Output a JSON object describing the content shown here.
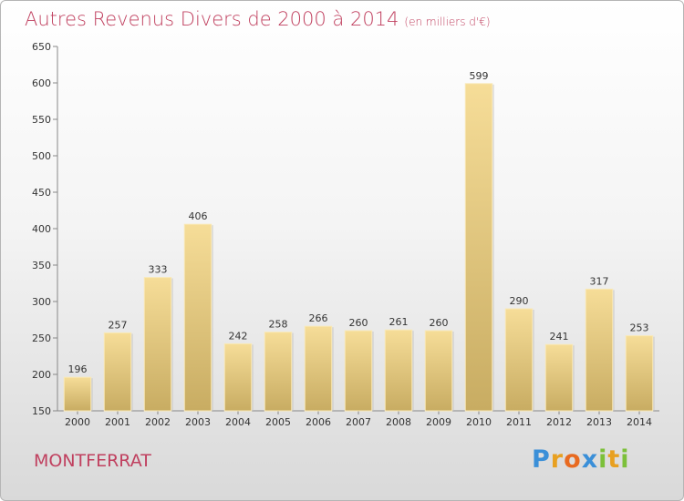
{
  "title": "Autres Revenus Divers de 2000 à 2014",
  "subtitle": "(en milliers d'€)",
  "city": "MONTFERRAT",
  "logo": {
    "letters": [
      {
        "ch": "P",
        "color": "#3a8fd8"
      },
      {
        "ch": "r",
        "color": "#e8a020"
      },
      {
        "ch": "o",
        "color": "#e86a20"
      },
      {
        "ch": "x",
        "color": "#3a8fd8"
      },
      {
        "ch": "i",
        "color": "#7cc03a"
      },
      {
        "ch": "t",
        "color": "#e8a020"
      },
      {
        "ch": "i",
        "color": "#7cc03a"
      }
    ]
  },
  "colors": {
    "title": "#c0405f",
    "bar_top": "#f6dd98",
    "bar_bottom": "#c8ac62"
  },
  "chart_data": {
    "type": "bar",
    "categories": [
      "2000",
      "2001",
      "2002",
      "2003",
      "2004",
      "2005",
      "2006",
      "2007",
      "2008",
      "2009",
      "2010",
      "2011",
      "2012",
      "2013",
      "2014"
    ],
    "values": [
      196,
      257,
      333,
      406,
      242,
      258,
      266,
      260,
      261,
      260,
      599,
      290,
      241,
      317,
      253
    ],
    "ylim": [
      150,
      650
    ],
    "yticks": [
      150,
      200,
      250,
      300,
      350,
      400,
      450,
      500,
      550,
      600,
      650
    ],
    "grid": false,
    "data_labels": true
  }
}
